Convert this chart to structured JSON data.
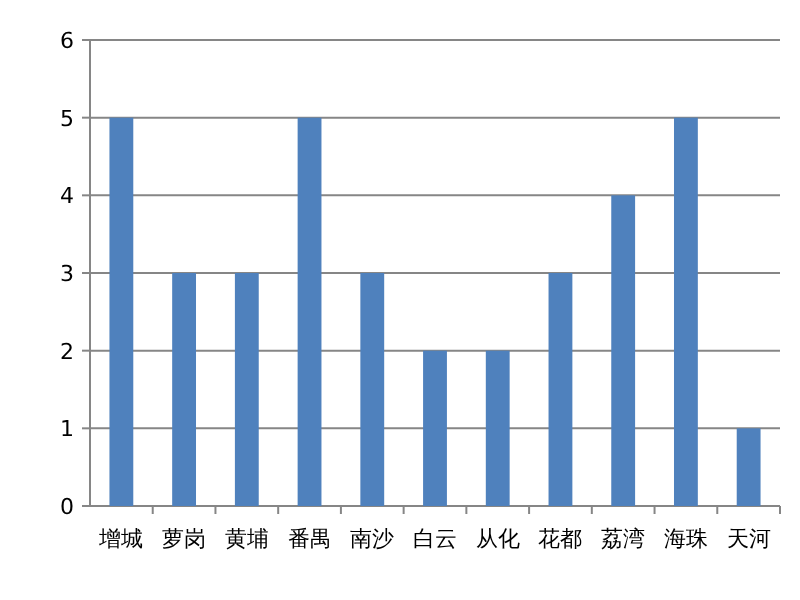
{
  "chart_data": {
    "type": "bar",
    "categories": [
      "增城",
      "萝岗",
      "黄埔",
      "番禺",
      "南沙",
      "白云",
      "从化",
      "花都",
      "荔湾",
      "海珠",
      "天河"
    ],
    "values": [
      5,
      3,
      3,
      5,
      3,
      2,
      2,
      3,
      4,
      5,
      1
    ],
    "color": "#4f81bd",
    "ylim": [
      0,
      6
    ],
    "yticks": [
      0,
      1,
      2,
      3,
      4,
      5,
      6
    ],
    "grid": "y"
  }
}
